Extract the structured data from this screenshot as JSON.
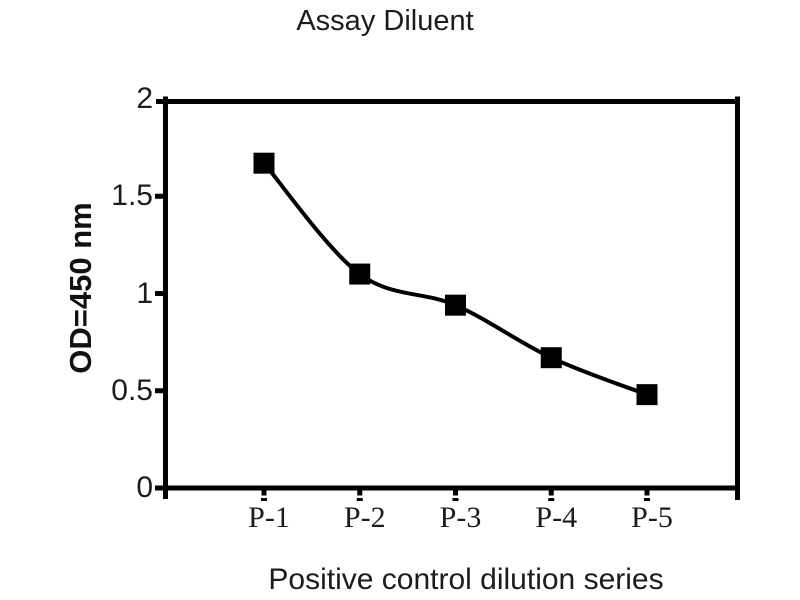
{
  "chart_data": {
    "type": "line",
    "title": "Assay Diluent",
    "xlabel": "Positive control dilution series",
    "ylabel": "OD=450 nm",
    "categories": [
      "P-1",
      "P-2",
      "P-3",
      "P-4",
      "P-5"
    ],
    "series": [
      {
        "name": "Positive control",
        "values": [
          1.67,
          1.1,
          0.94,
          0.67,
          0.48
        ]
      }
    ],
    "yticks": [
      0,
      0.5,
      1,
      1.5,
      2
    ],
    "ytick_labels": [
      "0",
      "0.5",
      "1",
      "1.5",
      "2"
    ],
    "ylim": [
      0,
      2
    ],
    "grid": "off",
    "legend_position": "none",
    "marker": "filled-square",
    "line_style": "smoothed",
    "colors": {
      "line": "#000000",
      "marker": "#000000",
      "axis": "#000000",
      "text": "#1c1c1c",
      "background": "#ffffff"
    }
  }
}
